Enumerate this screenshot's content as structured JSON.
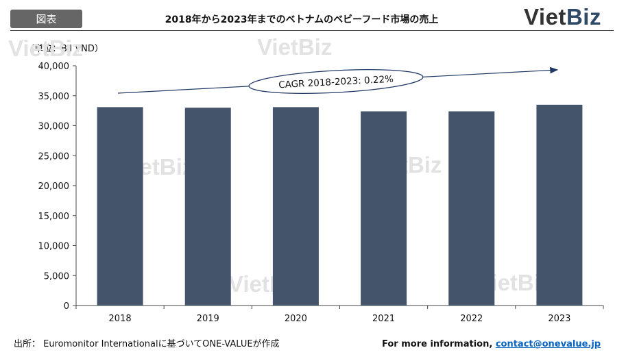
{
  "header": {
    "badge": "図表",
    "title": "2018年から2023年までのベトナムのベビーフード市場の売上",
    "logo_viet": "Viet",
    "logo_biz": "Biz"
  },
  "watermark_text": "VietBiz",
  "chart_data": {
    "type": "bar",
    "unit_label": "（単位：Bil VND）",
    "categories": [
      "2018",
      "2019",
      "2020",
      "2021",
      "2022",
      "2023"
    ],
    "values": [
      33100,
      33000,
      33100,
      32400,
      32400,
      33500
    ],
    "ylim": [
      0,
      40000
    ],
    "yticks": [
      "0",
      "5,000",
      "10,000",
      "15,000",
      "20,000",
      "25,000",
      "30,000",
      "35,000",
      "40,000"
    ],
    "ytick_values": [
      0,
      5000,
      10000,
      15000,
      20000,
      25000,
      30000,
      35000,
      40000
    ],
    "bar_color": "#44546a",
    "annotation": "CAGR 2018-2023: 0.22%",
    "grid": false
  },
  "footer": {
    "source": "出所： Euromonitor Internationalに基づいてONE-VALUEが作成",
    "more_info_label": "For more information, ",
    "contact_link": "contact@onevalue.jp"
  }
}
